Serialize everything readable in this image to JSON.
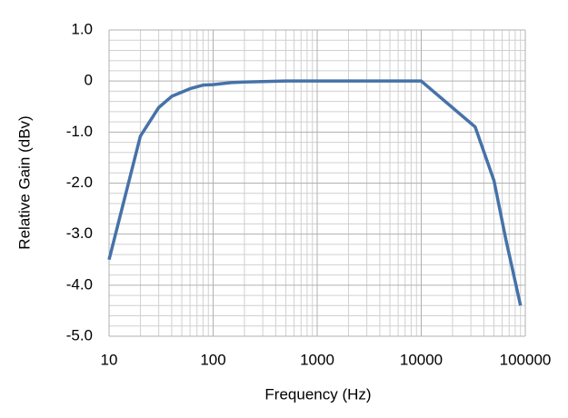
{
  "chart_data": {
    "type": "line",
    "xlabel": "Frequency (Hz)",
    "ylabel": "Relative Gain (dBv)",
    "x": [
      10,
      20,
      30,
      40,
      60,
      80,
      100,
      150,
      200,
      500,
      1000,
      10000,
      33000,
      50000,
      65000,
      90000
    ],
    "series": [
      {
        "name": "Relative Gain",
        "color": "#4672a8",
        "values": [
          -3.5,
          -1.08,
          -0.52,
          -0.3,
          -0.15,
          -0.08,
          -0.07,
          -0.03,
          -0.02,
          0,
          0,
          0,
          -0.9,
          -1.95,
          -3.1,
          -4.4
        ]
      }
    ],
    "xscale": "log",
    "xlim": [
      10,
      100000
    ],
    "xticks": [
      10,
      100,
      1000,
      10000,
      100000
    ],
    "ylim": [
      -5,
      1
    ],
    "yticks": [
      {
        "value": 1,
        "label": "1.0"
      },
      0,
      {
        "value": -1,
        "label": "-1.0"
      },
      {
        "value": -2,
        "label": "-2.0"
      },
      {
        "value": -3,
        "label": "-3.0"
      },
      {
        "value": -4,
        "label": "-4.0"
      },
      {
        "value": -5,
        "label": "-5.0"
      }
    ],
    "grid": true
  }
}
